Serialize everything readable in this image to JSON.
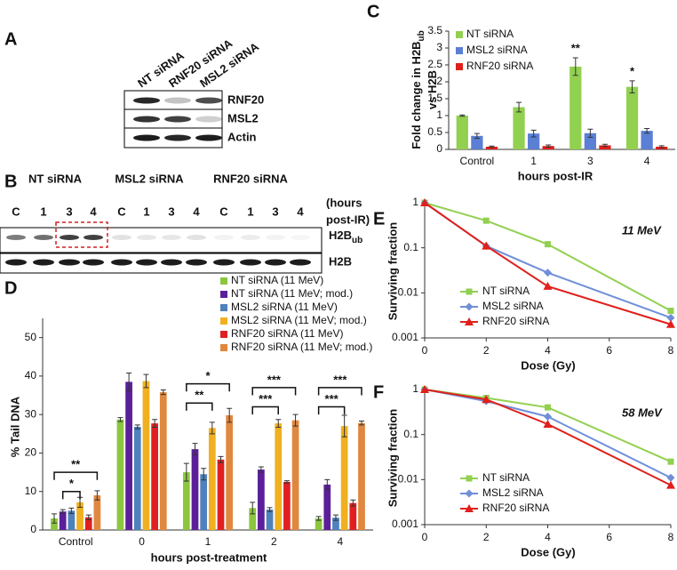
{
  "panel_labels": [
    "A",
    "B",
    "C",
    "D",
    "E",
    "F"
  ],
  "blot_a": {
    "lanes": [
      "NT siRNA",
      "RNF20 siRNA",
      "MSL2 siRNA"
    ],
    "rows": [
      "RNF20",
      "MSL2",
      "Actin"
    ]
  },
  "blot_b": {
    "groups": [
      "NT siRNA",
      "MSL2 siRNA",
      "RNF20 siRNA"
    ],
    "lanes": [
      "C",
      "1",
      "3",
      "4",
      "C",
      "1",
      "3",
      "4",
      "C",
      "1",
      "3",
      "4"
    ],
    "time_label": [
      "(hours",
      "post-IR)"
    ],
    "rows": [
      [
        "H2B",
        "ub"
      ],
      [
        "H2B"
      ]
    ]
  },
  "chart_data": [
    {
      "type": "bar",
      "categories": [
        "Control",
        "1",
        "3",
        "4"
      ],
      "series": [
        {
          "name": "NT siRNA",
          "color": "#92d050",
          "values": [
            1,
            1.25,
            2.45,
            1.85
          ],
          "errors": [
            0.02,
            0.14,
            0.26,
            0.18
          ]
        },
        {
          "name": "MSL2 siRNA",
          "color": "#5b7fd4",
          "values": [
            0.4,
            0.47,
            0.48,
            0.55
          ],
          "errors": [
            0.07,
            0.1,
            0.12,
            0.07
          ]
        },
        {
          "name": "RNF20 siRNA",
          "color": "#e0201b",
          "values": [
            0.08,
            0.1,
            0.12,
            0.08
          ],
          "errors": [
            0.02,
            0.03,
            0.03,
            0.03
          ]
        }
      ],
      "ylim": [
        0,
        3.5
      ],
      "yticks": [
        0,
        0.5,
        1,
        1.5,
        2,
        2.5,
        3,
        3.5
      ],
      "ylabel": [
        "Fold change in H2B",
        "ub",
        "vs H2B"
      ],
      "xlabel": "hours post-IR",
      "annotations": [
        "**",
        "*"
      ],
      "legend": "upper left"
    },
    {
      "type": "bar",
      "categories": [
        "Control",
        "0",
        "1",
        "2",
        "4"
      ],
      "series": [
        {
          "name": "NT siRNA (11 MeV)",
          "color": "#8cc63f",
          "values": [
            3,
            28.7,
            15,
            5.7,
            3
          ],
          "errors": [
            1.2,
            0.5,
            2.3,
            1.5,
            0.5
          ]
        },
        {
          "name": "NT siRNA (11 MeV; mod.)",
          "color": "#5b1f9a",
          "values": [
            4.8,
            38.5,
            21,
            15.7,
            11.8
          ],
          "errors": [
            0.5,
            2.3,
            1.5,
            0.7,
            1.3
          ]
        },
        {
          "name": "MSL2 siRNA (11 MeV)",
          "color": "#4f81bd",
          "values": [
            5,
            26.8,
            14.5,
            5.3,
            3.2
          ],
          "errors": [
            0.7,
            0.5,
            1.5,
            0.5,
            0.7
          ]
        },
        {
          "name": "MSL2 siRNA (11 MeV; mod.)",
          "color": "#f0b020",
          "values": [
            7.2,
            38.7,
            26.5,
            27.7,
            27
          ],
          "errors": [
            1.3,
            1.7,
            1.5,
            1,
            2.8
          ]
        },
        {
          "name": "RNF20 siRNA (11 MeV)",
          "color": "#e02020",
          "values": [
            3.3,
            27.7,
            18.3,
            12.5,
            7
          ],
          "errors": [
            0.6,
            1,
            0.8,
            0.3,
            0.8
          ]
        },
        {
          "name": "RNF20 siRNA (11 MeV; mod.)",
          "color": "#e08840",
          "values": [
            9,
            35.8,
            29.8,
            28.5,
            27.8
          ],
          "errors": [
            1.2,
            0.6,
            1.8,
            1.5,
            0.5
          ]
        }
      ],
      "ylim": [
        0,
        55
      ],
      "yticks": [
        0,
        10,
        20,
        30,
        40,
        50
      ],
      "ylabel": "% Tail DNA",
      "xlabel": "hours post-treatment",
      "annotations": [
        "*",
        "**",
        "**",
        "*",
        "***",
        "***",
        "***",
        "***"
      ],
      "legend": "upper right"
    },
    {
      "type": "line",
      "x": [
        0,
        2,
        4,
        8
      ],
      "series": [
        {
          "name": "NT siRNA",
          "color": "#92d050",
          "marker": "square",
          "values": [
            1,
            0.4,
            0.12,
            0.004
          ]
        },
        {
          "name": "MSL2 siRNA",
          "color": "#6f8fd8",
          "marker": "diamond",
          "values": [
            1,
            0.11,
            0.028,
            0.0028
          ]
        },
        {
          "name": "RNF20 siRNA",
          "color": "#e0201b",
          "marker": "triangle",
          "values": [
            1,
            0.11,
            0.014,
            0.002
          ]
        }
      ],
      "xlim": [
        0,
        8
      ],
      "xticks": [
        0,
        2,
        4,
        6,
        8
      ],
      "ylim": [
        0.001,
        1
      ],
      "yticks": [
        1,
        0.1,
        0.01,
        0.001
      ],
      "log_y": true,
      "xlabel": "Dose (Gy)",
      "ylabel": "Surviving fraction",
      "annotation": "11 MeV",
      "legend": "lower left"
    },
    {
      "type": "line",
      "x": [
        0,
        2,
        4,
        8
      ],
      "series": [
        {
          "name": "NT siRNA",
          "color": "#92d050",
          "marker": "square",
          "values": [
            1,
            0.65,
            0.4,
            0.025
          ]
        },
        {
          "name": "MSL2 siRNA",
          "color": "#6f8fd8",
          "marker": "diamond",
          "values": [
            1,
            0.55,
            0.25,
            0.011
          ]
        },
        {
          "name": "RNF20 siRNA",
          "color": "#e0201b",
          "marker": "triangle",
          "values": [
            1,
            0.6,
            0.17,
            0.0075
          ]
        }
      ],
      "xlim": [
        0,
        8
      ],
      "xticks": [
        0,
        2,
        4,
        6,
        8
      ],
      "ylim": [
        0.001,
        1
      ],
      "yticks": [
        1,
        0.1,
        0.01,
        0.001
      ],
      "log_y": true,
      "xlabel": "Dose (Gy)",
      "ylabel": "Surviving fraction",
      "annotation": "58 MeV",
      "legend": "lower left"
    }
  ]
}
